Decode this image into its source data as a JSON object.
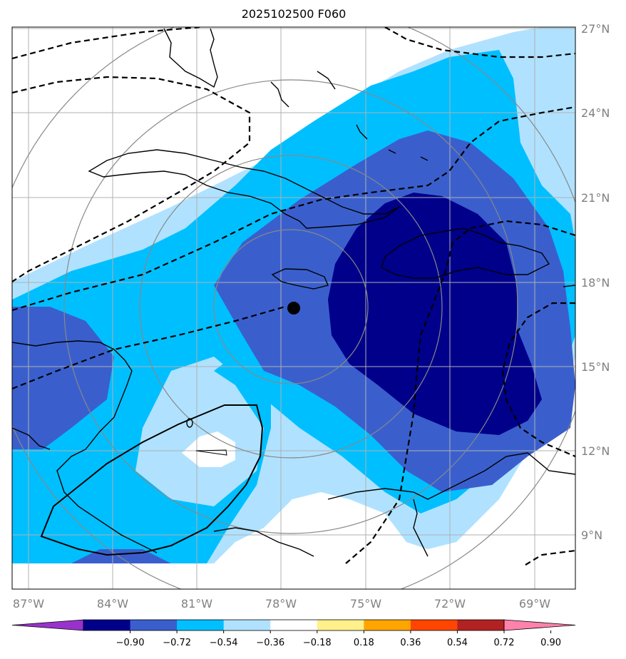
{
  "title": "2025102500 F060",
  "lon_labels": [
    "87°W",
    "84°W",
    "81°W",
    "78°W",
    "75°W",
    "72°W",
    "69°W"
  ],
  "lat_labels": [
    "27°N",
    "24°N",
    "21°N",
    "18°N",
    "15°N",
    "12°N",
    "9°N"
  ],
  "colorbar": {
    "ticks": [
      "−0.90",
      "−0.72",
      "−0.54",
      "−0.36",
      "−0.18",
      "0.18",
      "0.36",
      "0.54",
      "0.72",
      "0.90"
    ],
    "colors": [
      "#9932cc",
      "#00008b",
      "#3a5fcd",
      "#00bfff",
      "#b0e2ff",
      "#ffffff",
      "#fff08c",
      "#ffa500",
      "#ff4500",
      "#b22222",
      "#ff82ab"
    ]
  },
  "center_marker": {
    "lon": -77.8,
    "lat": 17.1
  },
  "colors": {
    "grid": "#b0b0b0",
    "range_rings": "#888888",
    "coast": "#000000"
  }
}
